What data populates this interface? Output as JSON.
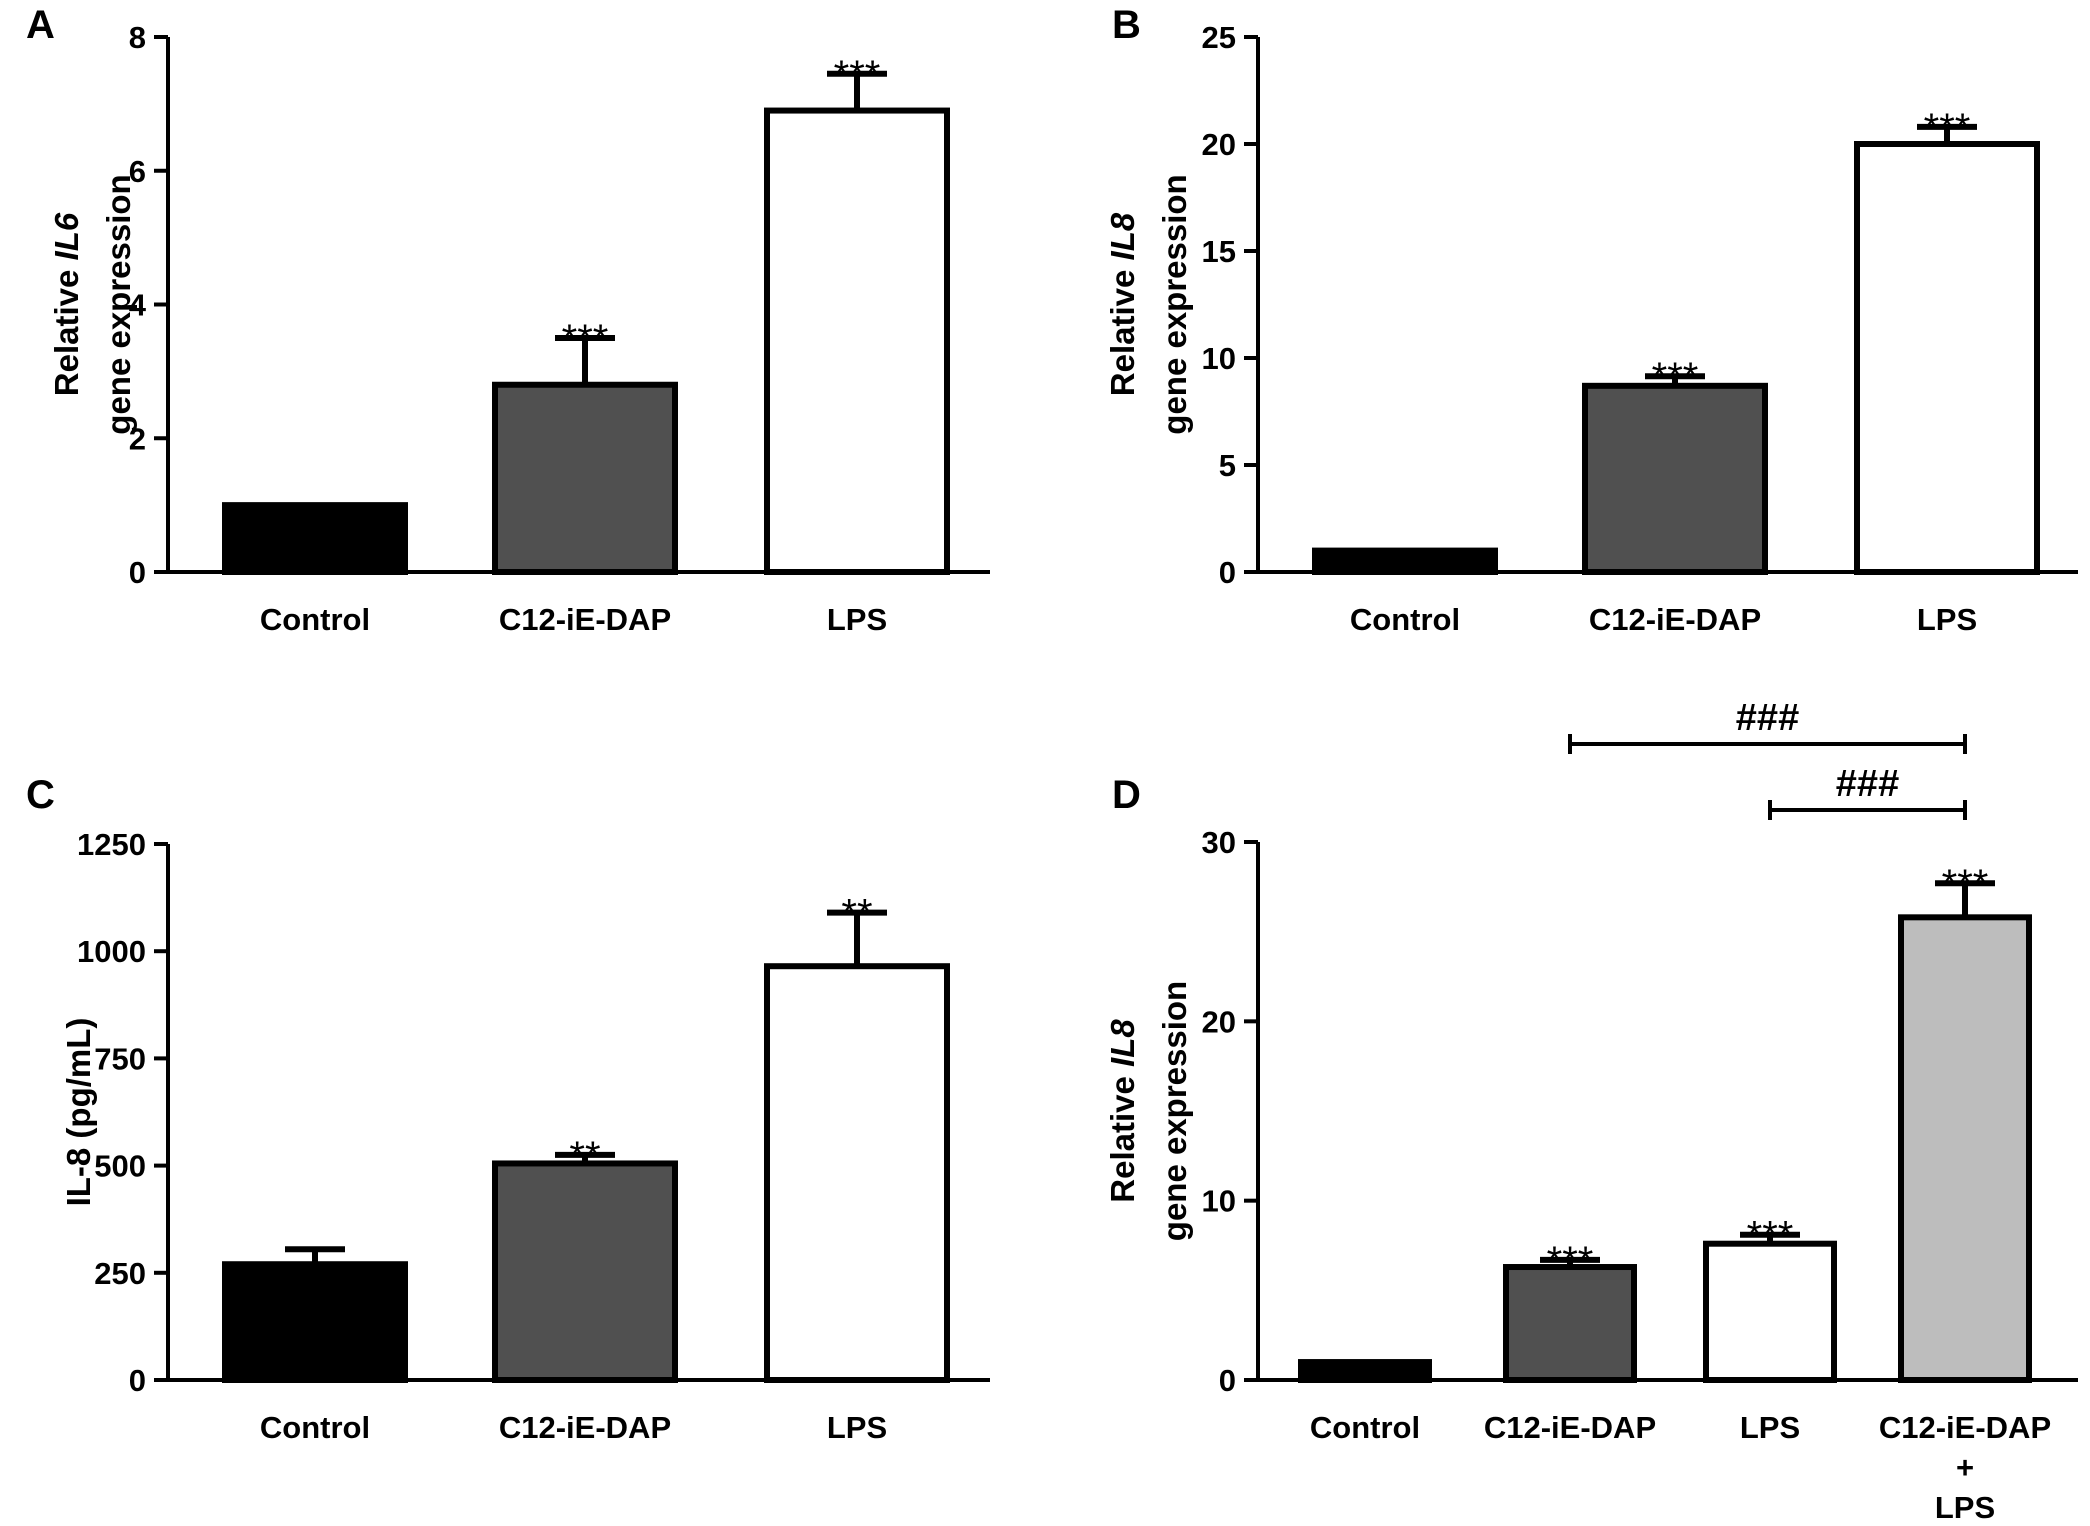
{
  "chart_data": [
    {
      "type": "bar",
      "panel_label": "A",
      "categories": [
        "Control",
        "C12-iE-DAP",
        "LPS"
      ],
      "values": [
        1.0,
        2.8,
        6.9
      ],
      "errors": [
        0,
        0.7,
        0.55
      ],
      "colors": [
        "#000000",
        "#505050",
        "#ffffff"
      ],
      "annotations": [
        "",
        "***",
        "***"
      ],
      "ylabel_lines": [
        {
          "text": "Relative ",
          "italic": "IL6",
          "suffix": ""
        },
        {
          "text": "gene expression",
          "italic": "",
          "suffix": ""
        }
      ],
      "ylim": [
        0,
        8
      ],
      "yticks": [
        "0",
        "2",
        "4",
        "6",
        "8"
      ],
      "ytick_values": [
        0,
        2,
        4,
        6,
        8
      ],
      "grid": false
    },
    {
      "type": "bar",
      "panel_label": "B",
      "categories": [
        "Control",
        "C12-iE-DAP",
        "LPS"
      ],
      "values": [
        1.0,
        8.7,
        20.0
      ],
      "errors": [
        0,
        0.45,
        0.8
      ],
      "colors": [
        "#000000",
        "#505050",
        "#ffffff"
      ],
      "annotations": [
        "",
        "***",
        "***"
      ],
      "ylabel_lines": [
        {
          "text": "Relative ",
          "italic": "IL8",
          "suffix": ""
        },
        {
          "text": "gene expression",
          "italic": "",
          "suffix": ""
        }
      ],
      "ylim": [
        0,
        25
      ],
      "yticks": [
        "0",
        "5",
        "10",
        "15",
        "20",
        "25"
      ],
      "ytick_values": [
        0,
        5,
        10,
        15,
        20,
        25
      ],
      "grid": false
    },
    {
      "type": "bar",
      "panel_label": "C",
      "categories": [
        "Control",
        "C12-iE-DAP",
        "LPS"
      ],
      "values": [
        270,
        505,
        965
      ],
      "errors": [
        35,
        20,
        125
      ],
      "colors": [
        "#000000",
        "#505050",
        "#ffffff"
      ],
      "annotations": [
        "",
        "**",
        "**"
      ],
      "ylabel_lines": [
        {
          "text": "IL-8 (pg/mL)",
          "italic": "",
          "suffix": ""
        }
      ],
      "ylim": [
        0,
        1250
      ],
      "yticks": [
        "0",
        "250",
        "500",
        "750",
        "1000",
        "1250"
      ],
      "ytick_values": [
        0,
        250,
        500,
        750,
        1000,
        1250
      ],
      "grid": false
    },
    {
      "type": "bar",
      "panel_label": "D",
      "categories": [
        "Control",
        "C12-iE-DAP",
        "LPS",
        "C12-iE-DAP + LPS"
      ],
      "category_lines": [
        [
          "Control"
        ],
        [
          "C12-iE-DAP"
        ],
        [
          "LPS"
        ],
        [
          "C12-iE-DAP",
          "+",
          "LPS"
        ]
      ],
      "values": [
        1.0,
        6.3,
        7.6,
        25.8
      ],
      "errors": [
        0,
        0.4,
        0.5,
        1.9
      ],
      "colors": [
        "#000000",
        "#505050",
        "#ffffff",
        "#bdbdbd"
      ],
      "annotations": [
        "",
        "***",
        "***",
        "***"
      ],
      "brackets": [
        {
          "from": 1,
          "to": 3,
          "label": "###"
        },
        {
          "from": 2,
          "to": 3,
          "label": "###"
        }
      ],
      "ylabel_lines": [
        {
          "text": "Relative ",
          "italic": "IL8",
          "suffix": ""
        },
        {
          "text": "gene expression",
          "italic": "",
          "suffix": ""
        }
      ],
      "ylim": [
        0,
        30
      ],
      "yticks": [
        "0",
        "10",
        "20",
        "30"
      ],
      "ytick_values": [
        0,
        10,
        20,
        30
      ],
      "grid": false
    }
  ]
}
